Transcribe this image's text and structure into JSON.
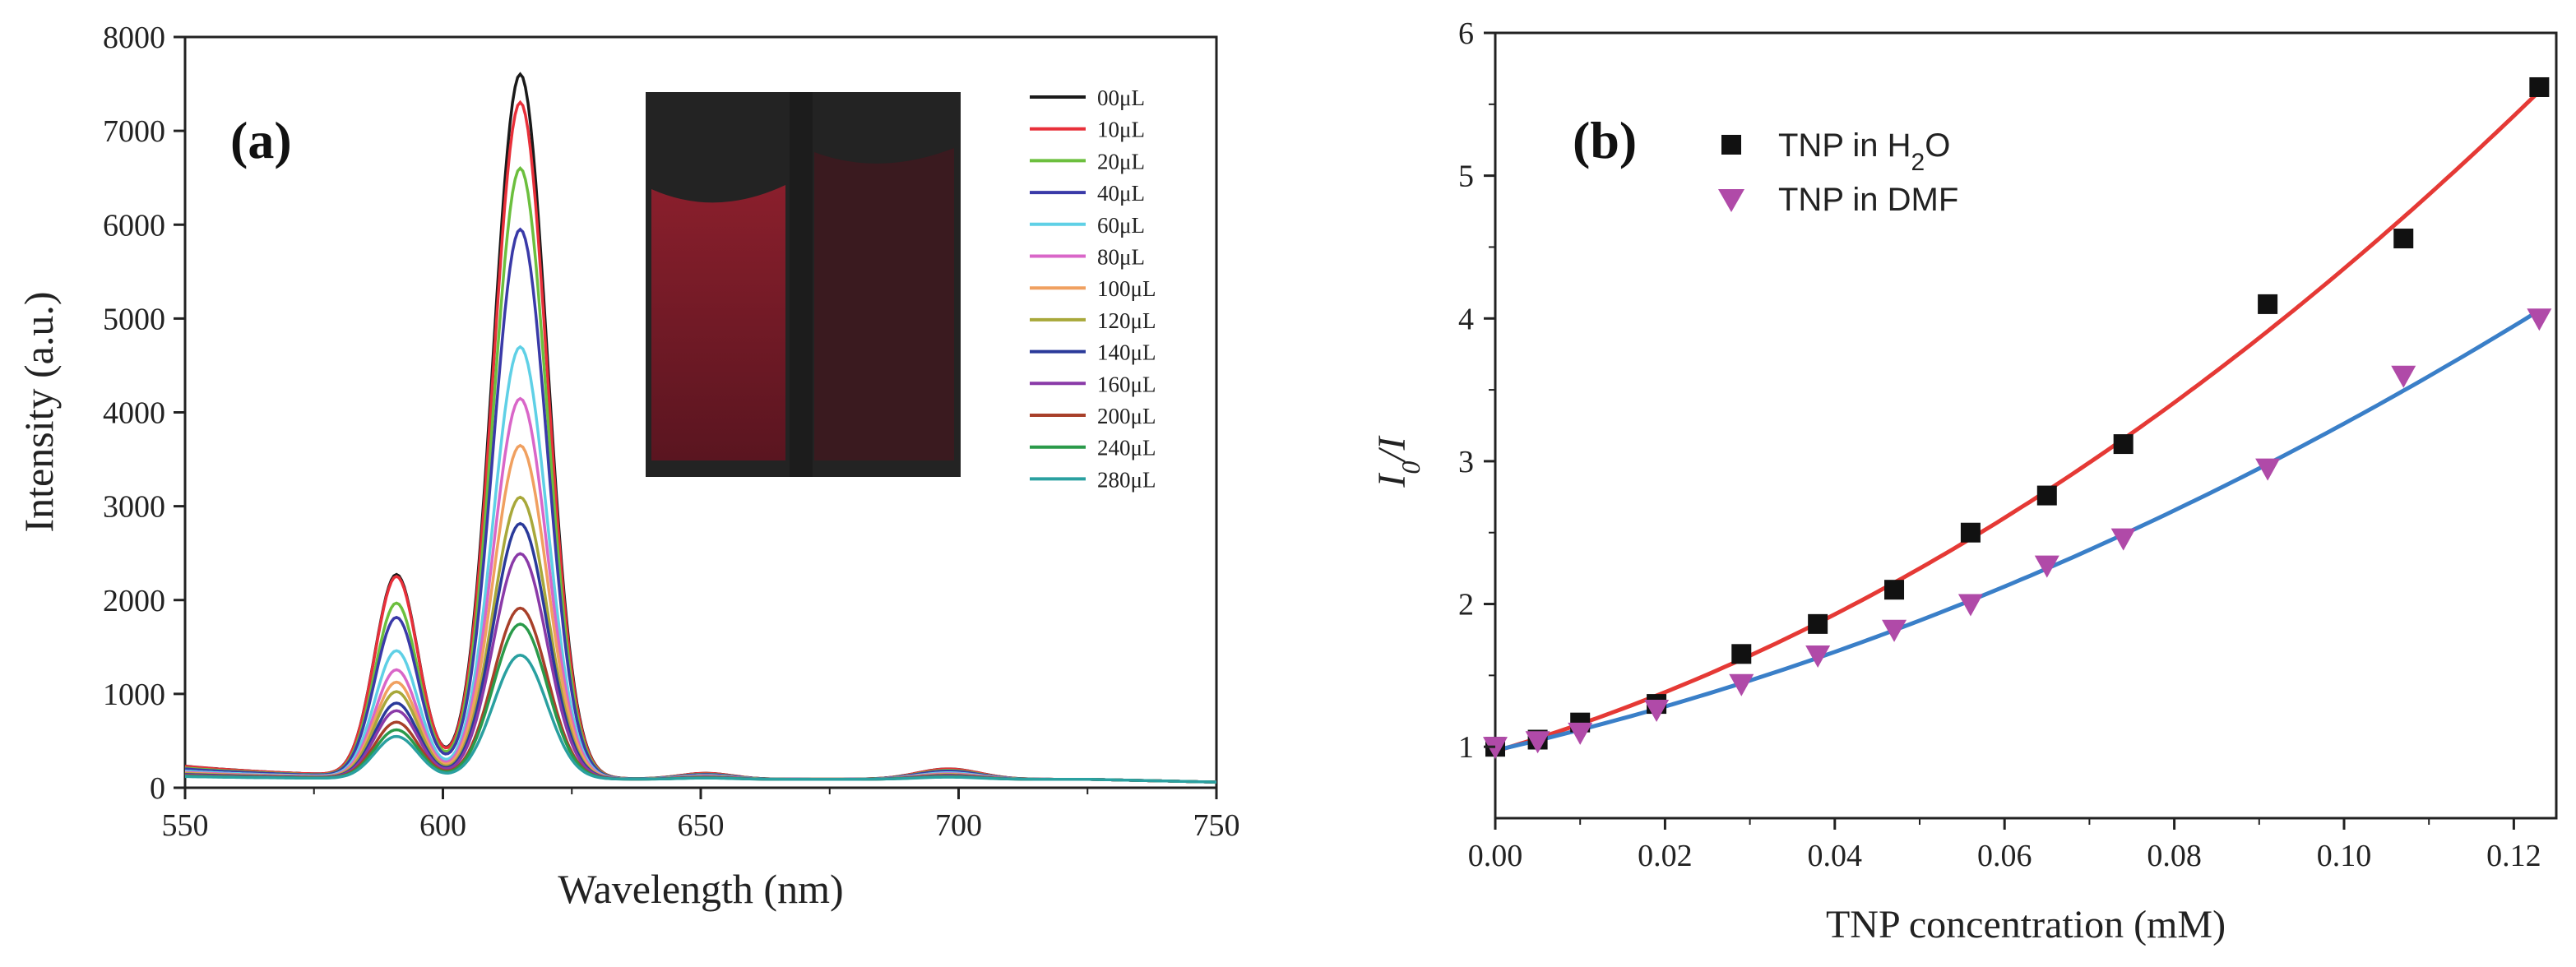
{
  "chart_data": [
    {
      "type": "line",
      "panel_label": "(a)",
      "xlabel": "Wavelength (nm)",
      "ylabel": "Intensity (a.u.)",
      "xlim": [
        550,
        750
      ],
      "ylim": [
        0,
        8000
      ],
      "x_ticks": [
        "550",
        "600",
        "650",
        "700",
        "750"
      ],
      "y_ticks": [
        "0",
        "1000",
        "2000",
        "3000",
        "4000",
        "5000",
        "6000",
        "7000",
        "8000"
      ],
      "legend_position": "top-right",
      "has_inset_photo": true,
      "peaks_nm": [
        591,
        615,
        651,
        698
      ],
      "series": [
        {
          "name": "00μL",
          "color": "#1a1a1a",
          "values": [
            2150,
            7500
          ]
        },
        {
          "name": "10μL",
          "color": "#e8303a",
          "values": [
            2130,
            7200
          ]
        },
        {
          "name": "20μL",
          "color": "#6cbf3e",
          "values": [
            1850,
            6500
          ]
        },
        {
          "name": "40μL",
          "color": "#3a3aa8",
          "values": [
            1700,
            5850
          ]
        },
        {
          "name": "60μL",
          "color": "#5fd0e6",
          "values": [
            1350,
            4600
          ]
        },
        {
          "name": "80μL",
          "color": "#d966c8",
          "values": [
            1150,
            4050
          ]
        },
        {
          "name": "100μL",
          "color": "#f0a060",
          "values": [
            1020,
            3550
          ]
        },
        {
          "name": "120μL",
          "color": "#a8a83a",
          "values": [
            920,
            3000
          ]
        },
        {
          "name": "140μL",
          "color": "#2a3a9a",
          "values": [
            800,
            2720
          ]
        },
        {
          "name": "160μL",
          "color": "#8a3aa8",
          "values": [
            720,
            2400
          ]
        },
        {
          "name": "200μL",
          "color": "#a8402a",
          "values": [
            600,
            1820
          ]
        },
        {
          "name": "240μL",
          "color": "#2a9a4a",
          "values": [
            520,
            1650
          ]
        },
        {
          "name": "280μL",
          "color": "#2aa0a0",
          "values": [
            450,
            1320
          ]
        }
      ]
    },
    {
      "type": "scatter",
      "panel_label": "(b)",
      "xlabel": "TNP concentration (mM)",
      "ylabel": "I0/I",
      "xlim": [
        0,
        0.125
      ],
      "ylim": [
        0.5,
        6
      ],
      "x_ticks": [
        "0.00",
        "0.02",
        "0.04",
        "0.06",
        "0.08",
        "0.10",
        "0.12"
      ],
      "y_ticks": [
        "1",
        "2",
        "3",
        "4",
        "5",
        "6"
      ],
      "legend_position": "top-left",
      "series": [
        {
          "name_main": "TNP in H",
          "name_sub": "2",
          "name_tail": "O",
          "marker": "square",
          "color": "#111111",
          "fit_color": "#e53935",
          "x": [
            0.0,
            0.005,
            0.01,
            0.019,
            0.029,
            0.038,
            0.047,
            0.056,
            0.065,
            0.074,
            0.091,
            0.107,
            0.123
          ],
          "y": [
            1.0,
            1.05,
            1.17,
            1.3,
            1.65,
            1.86,
            2.1,
            2.5,
            2.76,
            3.12,
            4.1,
            4.56,
            5.62
          ]
        },
        {
          "name_main": "TNP in DMF",
          "marker": "triangle-down",
          "color": "#b04aa8",
          "fit_color": "#3a7fc8",
          "x": [
            0.0,
            0.005,
            0.01,
            0.019,
            0.029,
            0.038,
            0.047,
            0.056,
            0.065,
            0.074,
            0.091,
            0.107,
            0.123
          ],
          "y": [
            1.0,
            1.04,
            1.1,
            1.26,
            1.44,
            1.64,
            1.82,
            2.0,
            2.27,
            2.46,
            2.95,
            3.6,
            4.0
          ]
        }
      ]
    }
  ]
}
